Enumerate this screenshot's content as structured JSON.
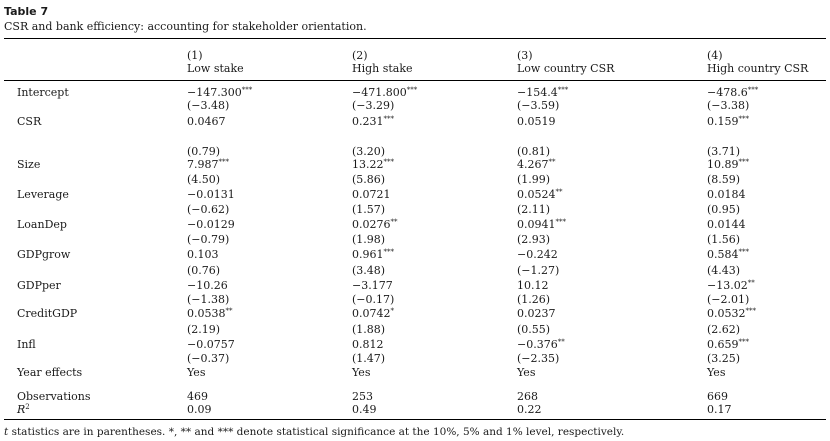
{
  "table_label": "Table 7",
  "caption": "CSR and bank efficiency: accounting for stakeholder orientation.",
  "columns": [
    {
      "num": "(1)",
      "name": "Low stake"
    },
    {
      "num": "(2)",
      "name": "High stake"
    },
    {
      "num": "(3)",
      "name": "Low country CSR"
    },
    {
      "num": "(4)",
      "name": "High country CSR"
    }
  ],
  "rows": [
    {
      "label": "Intercept",
      "values": [
        "−147.300***",
        "−471.800***",
        "−154.4***",
        "−478.6***"
      ],
      "top": 0
    },
    {
      "label": "",
      "values": [
        "(−3.48)",
        "(−3.29)",
        "(−3.59)",
        "(−3.38)"
      ]
    },
    {
      "label": "CSR",
      "values": [
        "0.0467",
        "0.231***",
        "0.0519",
        "0.159***"
      ]
    },
    {
      "label": "",
      "values": [
        "(0.79)",
        "(3.20)",
        "(0.81)",
        "(3.71)"
      ]
    },
    {
      "label": "Size",
      "values": [
        "7.987***",
        "13.22***",
        "4.267**",
        "10.89***"
      ]
    },
    {
      "label": "",
      "values": [
        "(4.50)",
        "(5.86)",
        "(1.99)",
        "(8.59)"
      ]
    },
    {
      "label": "Leverage",
      "values": [
        "−0.0131",
        "0.0721",
        "0.0524**",
        "0.0184"
      ]
    },
    {
      "label": "",
      "values": [
        "(−0.62)",
        "(1.57)",
        "(2.11)",
        "(0.95)"
      ]
    },
    {
      "label": "LoanDep",
      "values": [
        "−0.0129",
        "0.0276**",
        "0.0941***",
        "0.0144"
      ]
    },
    {
      "label": "",
      "values": [
        "(−0.79)",
        "(1.98)",
        "(2.93)",
        "(1.56)"
      ]
    },
    {
      "label": "GDPgrow",
      "values": [
        "0.103",
        "0.961***",
        "−0.242",
        "0.584***"
      ]
    },
    {
      "label": "",
      "values": [
        "(0.76)",
        "(3.48)",
        "(−1.27)",
        "(4.43)"
      ]
    },
    {
      "label": "GDPper",
      "values": [
        "−10.26",
        "−3.177",
        "10.12",
        "−13.02**"
      ]
    },
    {
      "label": "",
      "values": [
        "(−1.38)",
        "(−0.17)",
        "(1.26)",
        "(−2.01)"
      ]
    },
    {
      "label": "CreditGDP",
      "values": [
        "0.0538**",
        "0.0742*",
        "0.0237",
        "0.0532***"
      ]
    },
    {
      "label": "",
      "values": [
        "(2.19)",
        "(1.88)",
        "(0.55)",
        "(2.62)"
      ]
    },
    {
      "label": "Infl",
      "values": [
        "−0.0757",
        "0.812",
        "−0.376**",
        "0.659***"
      ]
    },
    {
      "label": "",
      "values": [
        "(−0.37)",
        "(1.47)",
        "(−2.35)",
        "(3.25)"
      ]
    },
    {
      "label": "Year effects",
      "values": [
        "Yes",
        "Yes",
        "Yes",
        "Yes"
      ]
    },
    {
      "label": "Observations",
      "values": [
        "469",
        "253",
        "268",
        "669"
      ]
    },
    {
      "label": "R2",
      "values": [
        "0.09",
        "0.49",
        "0.22",
        "0.17"
      ]
    }
  ],
  "footnote": "t statistics are in parentheses. *, ** and *** denote statistical significance at the 10%, 5% and 1% level, respectively."
}
